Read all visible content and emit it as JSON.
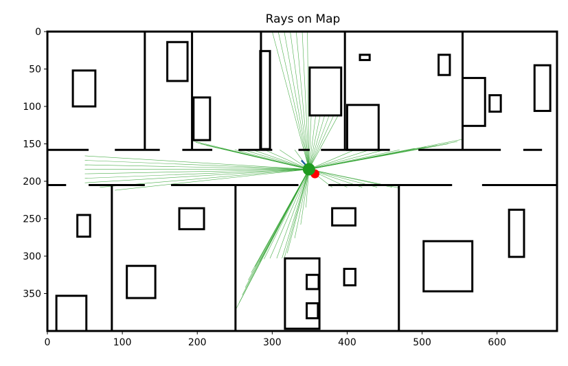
{
  "chart_data": {
    "type": "scatter",
    "title": "Rays on Map",
    "xlabel": "",
    "ylabel": "",
    "xlim": [
      0,
      680
    ],
    "ylim": [
      400,
      0
    ],
    "y_inverted": true,
    "grid": false,
    "legend": "none",
    "x_ticks": [
      0,
      100,
      200,
      300,
      400,
      500,
      600
    ],
    "y_ticks": [
      0,
      50,
      100,
      150,
      200,
      250,
      300,
      350
    ],
    "colors": {
      "walls": "#000000",
      "rays": "#2ca02c",
      "robot": "#1f9a1f",
      "target": "#ff0000",
      "heading": "#1f5fa0"
    },
    "map": {
      "boundary": [
        0,
        0,
        680,
        400
      ],
      "walls": [
        [
          130,
          0,
          130,
          158
        ],
        [
          193,
          0,
          193,
          158
        ],
        [
          285,
          0,
          285,
          158
        ],
        [
          397,
          0,
          397,
          158
        ],
        [
          554,
          0,
          554,
          158
        ],
        [
          0,
          158,
          55,
          158
        ],
        [
          90,
          158,
          150,
          158
        ],
        [
          180,
          158,
          220,
          158
        ],
        [
          255,
          158,
          300,
          158
        ],
        [
          335,
          158,
          350,
          158
        ],
        [
          365,
          158,
          457,
          158
        ],
        [
          495,
          158,
          605,
          158
        ],
        [
          635,
          158,
          660,
          158
        ],
        [
          0,
          205,
          25,
          205
        ],
        [
          55,
          205,
          130,
          205
        ],
        [
          165,
          205,
          335,
          205
        ],
        [
          375,
          205,
          540,
          205
        ],
        [
          580,
          205,
          680,
          205
        ],
        [
          86,
          205,
          86,
          400
        ],
        [
          251,
          205,
          251,
          400
        ],
        [
          469,
          205,
          469,
          400
        ]
      ],
      "boxes": [
        [
          34,
          52,
          30,
          48
        ],
        [
          160,
          14,
          27,
          52
        ],
        [
          195,
          88,
          22,
          57
        ],
        [
          284,
          26,
          13,
          131
        ],
        [
          350,
          48,
          42,
          64
        ],
        [
          400,
          98,
          42,
          60
        ],
        [
          417,
          31,
          13,
          7
        ],
        [
          522,
          31,
          15,
          27
        ],
        [
          554,
          62,
          30,
          64
        ],
        [
          590,
          85,
          15,
          22
        ],
        [
          650,
          45,
          21,
          61
        ],
        [
          40,
          245,
          17,
          29
        ],
        [
          176,
          236,
          33,
          28
        ],
        [
          106,
          313,
          38,
          43
        ],
        [
          12,
          353,
          40,
          47
        ],
        [
          317,
          303,
          46,
          94
        ],
        [
          346,
          325,
          16,
          19
        ],
        [
          346,
          363,
          15,
          20
        ],
        [
          380,
          236,
          31,
          23
        ],
        [
          396,
          317,
          15,
          22
        ],
        [
          502,
          280,
          65,
          67
        ],
        [
          616,
          238,
          20,
          63
        ]
      ]
    },
    "rays": {
      "origin": [
        349,
        184
      ],
      "targets": [
        [
          300,
          0
        ],
        [
          308,
          0
        ],
        [
          316,
          0
        ],
        [
          324,
          0
        ],
        [
          332,
          0
        ],
        [
          340,
          0
        ],
        [
          347,
          0
        ],
        [
          352,
          112
        ],
        [
          358,
          112
        ],
        [
          364,
          112
        ],
        [
          370,
          112
        ],
        [
          376,
          112
        ],
        [
          382,
          112
        ],
        [
          388,
          112
        ],
        [
          194,
          146
        ],
        [
          198,
          148
        ],
        [
          204,
          150
        ],
        [
          212,
          152
        ],
        [
          222,
          154
        ],
        [
          232,
          156
        ],
        [
          250,
          158
        ],
        [
          262,
          158
        ],
        [
          274,
          158
        ],
        [
          290,
          158
        ],
        [
          310,
          158
        ],
        [
          330,
          158
        ],
        [
          410,
          158
        ],
        [
          430,
          158
        ],
        [
          450,
          158
        ],
        [
          470,
          158
        ],
        [
          490,
          156
        ],
        [
          505,
          154
        ],
        [
          520,
          152
        ],
        [
          535,
          150
        ],
        [
          547,
          147
        ],
        [
          554,
          144
        ],
        [
          50,
          166
        ],
        [
          50,
          172
        ],
        [
          50,
          178
        ],
        [
          50,
          184
        ],
        [
          50,
          190
        ],
        [
          50,
          196
        ],
        [
          50,
          202
        ],
        [
          70,
          208
        ],
        [
          90,
          212
        ],
        [
          252,
          370
        ],
        [
          256,
          362
        ],
        [
          260,
          352
        ],
        [
          264,
          342
        ],
        [
          268,
          332
        ],
        [
          272,
          322
        ],
        [
          277,
          314
        ],
        [
          283,
          308
        ],
        [
          289,
          304
        ],
        [
          297,
          303
        ],
        [
          306,
          303
        ],
        [
          313,
          303
        ],
        [
          316,
          303
        ],
        [
          320,
          296
        ],
        [
          330,
          276
        ],
        [
          338,
          258
        ],
        [
          345,
          235
        ],
        [
          380,
          208
        ],
        [
          400,
          208
        ],
        [
          420,
          208
        ],
        [
          440,
          208
        ],
        [
          460,
          208
        ],
        [
          470,
          209
        ]
      ]
    },
    "robot": {
      "x": 349,
      "y": 184
    },
    "target": {
      "x": 357,
      "y": 190
    },
    "heading": {
      "from": [
        339,
        172
      ],
      "to": [
        349,
        183
      ]
    }
  }
}
